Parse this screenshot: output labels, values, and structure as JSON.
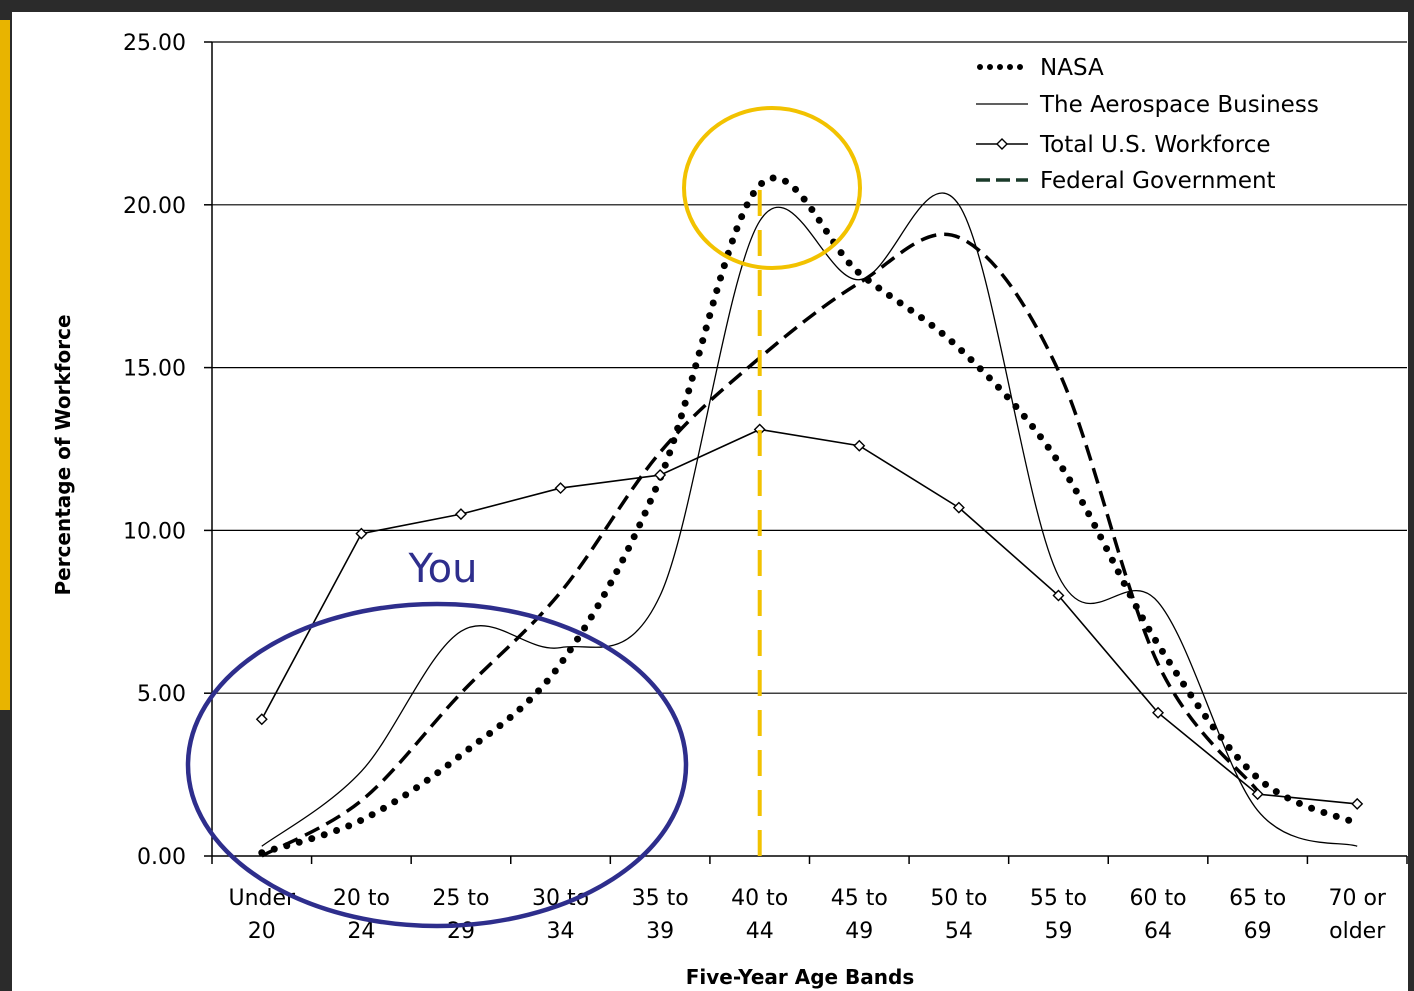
{
  "chart_data": {
    "type": "line",
    "title": "",
    "xlabel": "Five-Year Age Bands",
    "ylabel": "Percentage of Workforce",
    "ylim": [
      0,
      25
    ],
    "yticks": [
      "0.00",
      "5.00",
      "10.00",
      "15.00",
      "20.00",
      "25.00"
    ],
    "ytick_values": [
      0,
      5,
      10,
      15,
      20,
      25
    ],
    "categories": [
      [
        "Under",
        "20"
      ],
      [
        "20 to",
        "24"
      ],
      [
        "25 to",
        "29"
      ],
      [
        "30 to",
        "34"
      ],
      [
        "35 to",
        "39"
      ],
      [
        "40 to",
        "44"
      ],
      [
        "45 to",
        "49"
      ],
      [
        "50 to",
        "54"
      ],
      [
        "55 to",
        "59"
      ],
      [
        "60 to",
        "64"
      ],
      [
        "65 to",
        "69"
      ],
      [
        "70 or",
        "older"
      ]
    ],
    "grid": true,
    "legend_position": "top-right",
    "series": [
      {
        "name": "NASA",
        "style": "dotted",
        "values": [
          0.1,
          1.1,
          3.1,
          5.9,
          11.6,
          20.6,
          17.9,
          15.6,
          12.1,
          6.5,
          2.4,
          1.0
        ]
      },
      {
        "name": "The Aerospace Business",
        "style": "solid",
        "values": [
          0.3,
          2.6,
          6.9,
          6.4,
          8.0,
          19.5,
          17.7,
          20.0,
          8.6,
          7.8,
          1.4,
          0.3
        ]
      },
      {
        "name": "Total U.S. Workforce",
        "style": "marker",
        "values": [
          4.2,
          9.9,
          10.5,
          11.3,
          11.7,
          13.1,
          12.6,
          10.7,
          8.0,
          4.4,
          1.9,
          1.6
        ]
      },
      {
        "name": "Federal Government",
        "style": "dashed",
        "values": [
          0.0,
          1.7,
          5.0,
          8.1,
          12.4,
          15.3,
          17.6,
          19.0,
          14.9,
          5.9,
          2.0,
          null
        ]
      }
    ],
    "annotations": {
      "circle_label": "You",
      "circle_color": "#2e2e8c",
      "peak_circle_color": "#f2c200",
      "peak_line_color": "#f2c200",
      "peak_category_index": 5
    }
  },
  "colors": {
    "background": "#ffffff",
    "frame": "#2b2b2b",
    "accent_left": "#e8b400"
  }
}
